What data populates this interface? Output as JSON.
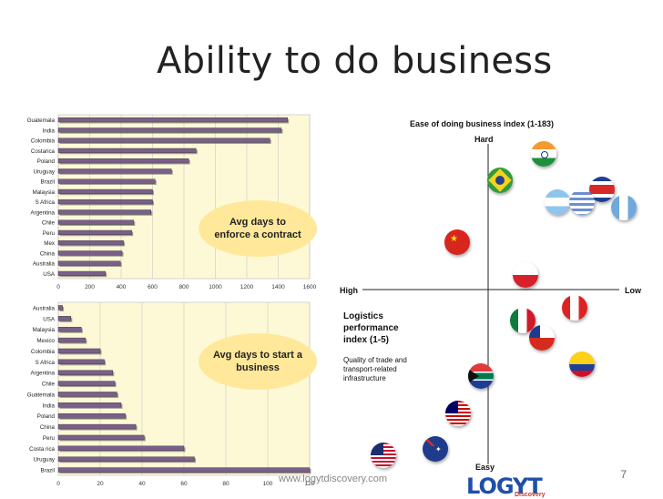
{
  "slide": {
    "title": "Ability to do business",
    "page_number": "7",
    "url": "www.logytdiscovery.com",
    "logo_text": "LOGYT",
    "logo_sub": "Discovery"
  },
  "colors": {
    "panel_bg": "#fdf9d6",
    "bar_fill": "#7a5f8a",
    "oval_fill": "#ffe89a",
    "logo_blue": "#1f4fa8"
  },
  "chart_data": [
    {
      "type": "bar",
      "orientation": "horizontal",
      "annotation": "Avg days to enforce a contract",
      "categories": [
        "Guatemala",
        "India",
        "Colombia",
        "Costarica",
        "Poland",
        "Uruguay",
        "Brazil",
        "Malaysia",
        "S Africa",
        "Argentina",
        "Chile",
        "Peru",
        "Mex",
        "China",
        "Australia",
        "USA"
      ],
      "values": [
        1459,
        1420,
        1346,
        877,
        830,
        720,
        616,
        600,
        600,
        590,
        480,
        468,
        415,
        406,
        395,
        300
      ],
      "xlim": [
        0,
        1600
      ],
      "xticks": [
        "0",
        "200",
        "400",
        "600",
        "800",
        "1000",
        "1200",
        "1400",
        "1600"
      ],
      "grid": true
    },
    {
      "type": "bar",
      "orientation": "horizontal",
      "annotation": "Avg days to start a business",
      "categories": [
        "Australia",
        "USA",
        "Malaysia",
        "Mexico",
        "Colombia",
        "S Africa",
        "Argentina",
        "Chile",
        "Guatemala",
        "India",
        "Poland",
        "China",
        "Peru",
        "Costa rica",
        "Uruguay",
        "Brazil"
      ],
      "values": [
        2,
        6,
        11,
        13,
        20,
        22,
        26,
        27,
        28,
        30,
        32,
        37,
        41,
        60,
        65,
        120
      ],
      "xlim": [
        0,
        120
      ],
      "xticks": [
        "0",
        "20",
        "40",
        "60",
        "80",
        "100",
        "120"
      ],
      "grid": true
    },
    {
      "type": "scatter",
      "top_label": "Ease of doing business index (1-183)",
      "y_top": "Hard",
      "y_bottom": "Easy",
      "x_left": "High",
      "x_right": "Low",
      "x_axis_title": "Logistics performance index (1-5)",
      "x_axis_subtitle": "Quality of trade and transport-related infrastructure",
      "points_icons": [
        "india-flag-icon",
        "brazil-flag-icon",
        "argentina-flag-icon",
        "uruguay-flag-icon",
        "costa-rica-flag-icon",
        "guatemala-flag-icon",
        "china-flag-icon",
        "poland-flag-icon",
        "peru-flag-icon",
        "mexico-flag-icon",
        "chile-flag-icon",
        "colombia-flag-icon",
        "south-africa-flag-icon",
        "malaysia-flag-icon",
        "usa-flag-icon",
        "australia-flag-icon"
      ]
    }
  ]
}
